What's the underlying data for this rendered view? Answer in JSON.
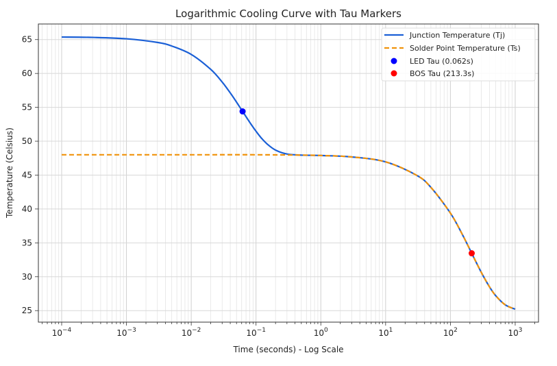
{
  "chart_data": {
    "type": "line",
    "title": "Logarithmic Cooling Curve with Tau Markers",
    "xlabel": "Time (seconds) - Log Scale",
    "ylabel": "Temperature (Celsius)",
    "xscale": "log",
    "xlim": [
      4.37e-05,
      2290
    ],
    "ylim": [
      23.3,
      67.3
    ],
    "grid": "both (major and minor on x)",
    "legend_position": "top-right",
    "x_ticks": [
      {
        "value": 0.0001,
        "base": "10",
        "exp": "−4"
      },
      {
        "value": 0.001,
        "base": "10",
        "exp": "−3"
      },
      {
        "value": 0.01,
        "base": "10",
        "exp": "−2"
      },
      {
        "value": 0.1,
        "base": "10",
        "exp": "−1"
      },
      {
        "value": 1,
        "base": "10",
        "exp": "0"
      },
      {
        "value": 10,
        "base": "10",
        "exp": "1"
      },
      {
        "value": 100,
        "base": "10",
        "exp": "2"
      },
      {
        "value": 1000,
        "base": "10",
        "exp": "3"
      }
    ],
    "y_ticks": [
      "25",
      "30",
      "35",
      "40",
      "45",
      "50",
      "55",
      "60",
      "65"
    ],
    "series": [
      {
        "name": "Junction Temperature (Tj)",
        "color": "#1a5fd6",
        "style": "solid",
        "x": [
          0.0001,
          0.0003,
          0.001,
          0.003,
          0.005,
          0.01,
          0.02,
          0.03,
          0.04,
          0.05,
          0.062,
          0.08,
          0.1,
          0.12,
          0.15,
          0.2,
          0.3,
          0.5,
          1,
          3,
          10,
          30,
          50,
          100,
          150,
          200,
          213.3,
          300,
          400,
          500,
          700,
          1000
        ],
        "y": [
          65.37,
          65.32,
          65.12,
          64.58,
          64.05,
          62.81,
          60.6,
          58.73,
          57.13,
          55.77,
          54.4,
          52.79,
          51.47,
          50.5,
          49.55,
          48.69,
          48.11,
          47.95,
          47.89,
          47.68,
          46.95,
          44.98,
          43.19,
          39.39,
          36.39,
          34.01,
          33.46,
          30.64,
          28.53,
          27.21,
          25.86,
          25.21
        ]
      },
      {
        "name": "Solder Point Temperature (Ts)",
        "color": "#f0920a",
        "style": "dashed",
        "x": [
          0.0001,
          0.001,
          0.01,
          0.1,
          0.5,
          1,
          3,
          10,
          30,
          50,
          100,
          150,
          200,
          213.3,
          300,
          400,
          500,
          700,
          1000
        ],
        "y": [
          48.0,
          48.0,
          48.0,
          48.0,
          47.95,
          47.89,
          47.68,
          46.95,
          44.98,
          43.19,
          39.39,
          36.39,
          34.01,
          33.46,
          30.64,
          28.53,
          27.21,
          25.86,
          25.21
        ]
      }
    ],
    "markers": [
      {
        "name": "LED Tau (0.062s)",
        "x": 0.062,
        "y": 54.4,
        "color": "#0000ff"
      },
      {
        "name": "BOS Tau (213.3s)",
        "x": 213.3,
        "y": 33.46,
        "color": "#ff0000"
      }
    ]
  }
}
